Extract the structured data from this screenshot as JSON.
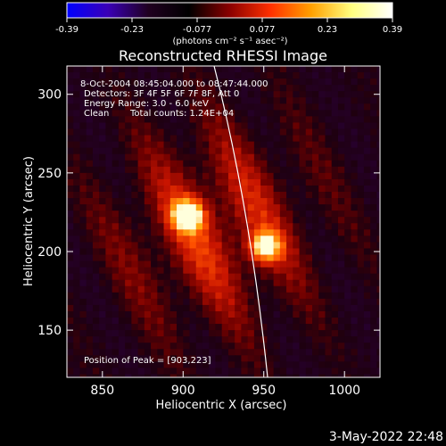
{
  "chart_data": {
    "type": "heatmap",
    "title": "Reconstructed RHESSI Image",
    "xlabel": "Heliocentric X (arcsec)",
    "ylabel": "Heliocentric Y (arcsec)",
    "xlim": [
      828,
      1022
    ],
    "ylim": [
      120,
      318
    ],
    "x_ticks": [
      850,
      900,
      950,
      1000
    ],
    "y_ticks": [
      150,
      200,
      250,
      300
    ],
    "colorbar": {
      "range": [
        -0.39,
        0.39
      ],
      "ticks": [
        "-0.39",
        "-0.23",
        "-0.077",
        "0.077",
        "0.23",
        "0.39"
      ],
      "unit_label": "(photons cm⁻² s⁻¹ asec⁻²)",
      "colors": [
        "#0000ff",
        "#3a00b8",
        "#200020",
        "#000000",
        "#8a0000",
        "#ff3000",
        "#ffa000",
        "#ffff80",
        "#ffffff"
      ]
    },
    "annotations": [
      "8-Oct-2004 08:45:04.000 to 08:47:44.000",
      "Detectors: 3F 4F 5F 6F 7F 8F, Att 0",
      "Energy Range: 3.0 - 6.0 keV",
      "Clean",
      "Total counts: 1.24E+04"
    ],
    "peak_label": "Position of Peak = [903,223]",
    "sources": [
      {
        "x": 903,
        "y": 223,
        "value": 0.39
      },
      {
        "x": 951,
        "y": 203,
        "value": 0.35
      }
    ],
    "timestamp": "3-May-2022 22:48"
  }
}
